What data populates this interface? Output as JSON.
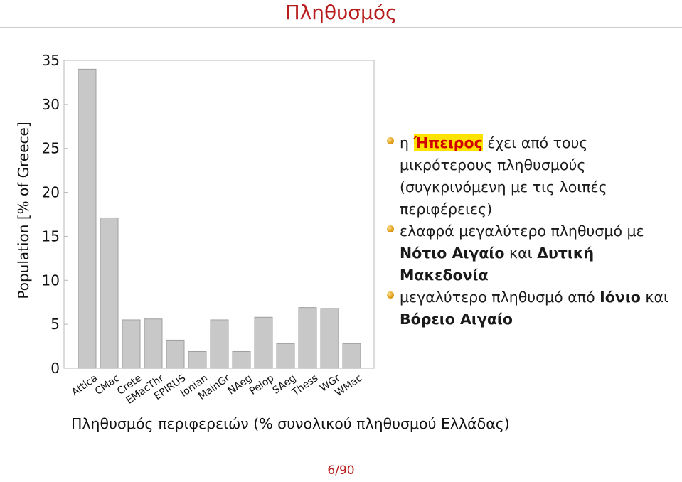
{
  "slide_title": "Πληθυσμός",
  "caption": "Πληθυσμός περιφερειών (% συνολικού πληθυσμού Ελλάδας)",
  "page_number": "6/90",
  "bullets": [
    {
      "pre": "η ",
      "hl": "Ήπειρος",
      "post": " έχει από τους μικρότερους πληθυσμούς (συγκρινόμενη με τις λοιπές περιφέρειες)"
    },
    {
      "pre": "ελαφρά μεγαλύτερο πληθυσμό με ",
      "b1": "Νότιο Αιγαίο",
      "mid": " και ",
      "b2": "Δυτική Μακεδονία"
    },
    {
      "pre": "μεγαλύτερο πληθυσμό από ",
      "b1": "Ιόνιο",
      "mid": " και ",
      "b2": "Βόρειο Αιγαίο"
    }
  ],
  "colors": {
    "bar": "#c8c8c8",
    "bar_edge": "#a0a0a0",
    "title": "#b71c1c",
    "highlight_bg": "#ffe300",
    "highlight_text": "#d00000"
  },
  "chart_data": {
    "type": "bar",
    "categories": [
      "Attica",
      "CMac",
      "Crete",
      "EMacThr",
      "EPIRUS",
      "Ionian",
      "MainGr",
      "NAeg",
      "Pelop",
      "SAeg",
      "Thess",
      "WGr",
      "WMac"
    ],
    "values": [
      34.0,
      17.1,
      5.5,
      5.6,
      3.2,
      1.9,
      5.5,
      1.9,
      5.8,
      2.8,
      6.9,
      6.8,
      2.8
    ],
    "ylabel": "Population [% of Greece]",
    "xlabel": "",
    "ylim": [
      0,
      35
    ],
    "yticks": [
      0,
      5,
      10,
      15,
      20,
      25,
      30,
      35
    ],
    "grid": false
  }
}
